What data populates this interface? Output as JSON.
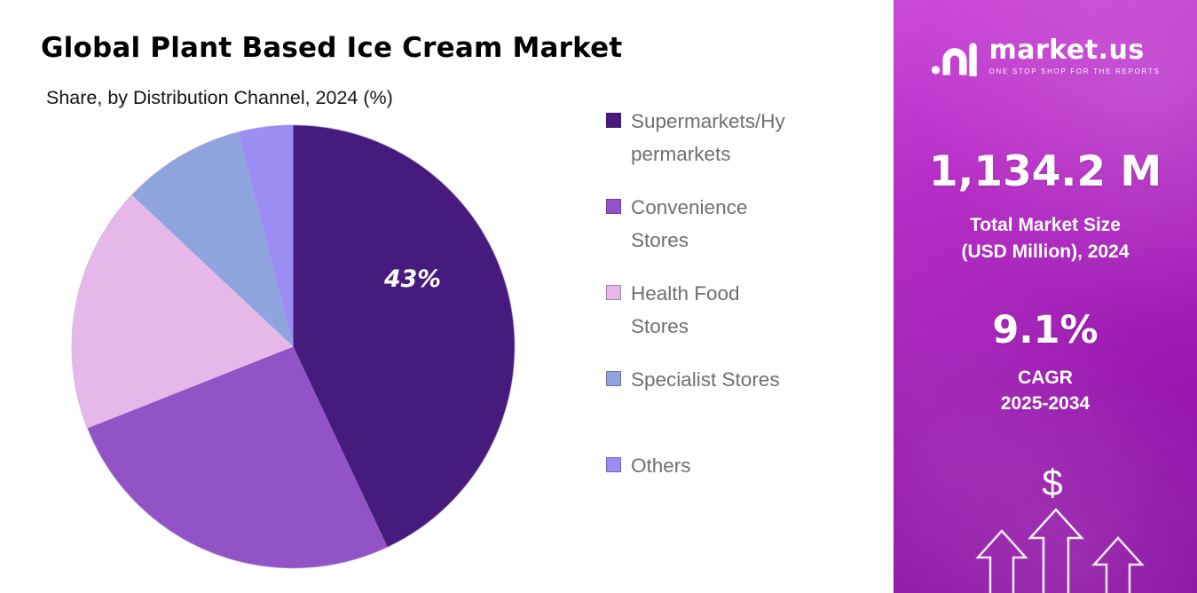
{
  "header": {
    "title": "Global Plant Based Ice Cream Market",
    "subtitle": "Share, by Distribution Channel, 2024 (%)"
  },
  "chart_data": {
    "type": "pie",
    "title": "Global Plant Based Ice Cream Market",
    "subtitle": "Share, by Distribution Channel, 2024 (%)",
    "labels": [
      "Supermarkets/Hypermarkets",
      "Convenience Stores",
      "Health Food Stores",
      "Specialist Stores",
      "Others"
    ],
    "values": [
      43,
      26,
      18,
      9,
      4
    ],
    "unit": "%",
    "colors": [
      "#461B7E",
      "#9153C6",
      "#E6B8EA",
      "#8FA3DC",
      "#9B8DF2"
    ],
    "data_labels": [
      "43%",
      "",
      "",
      "",
      ""
    ],
    "start_angle": 0,
    "direction": "clockwise",
    "legend_position": "right"
  },
  "sidebar": {
    "brand": "market.us",
    "tagline": "ONE STOP SHOP FOR THE REPORTS",
    "market_size": {
      "value": "1,134.2 M",
      "label_line1": "Total Market Size",
      "label_line2": "(USD Million), 2024"
    },
    "cagr": {
      "value": "9.1%",
      "label_line1": "CAGR",
      "label_line2": "2025-2034"
    },
    "currency_symbol": "$",
    "gradient": [
      "#CB49D8",
      "#8A10A2"
    ]
  }
}
